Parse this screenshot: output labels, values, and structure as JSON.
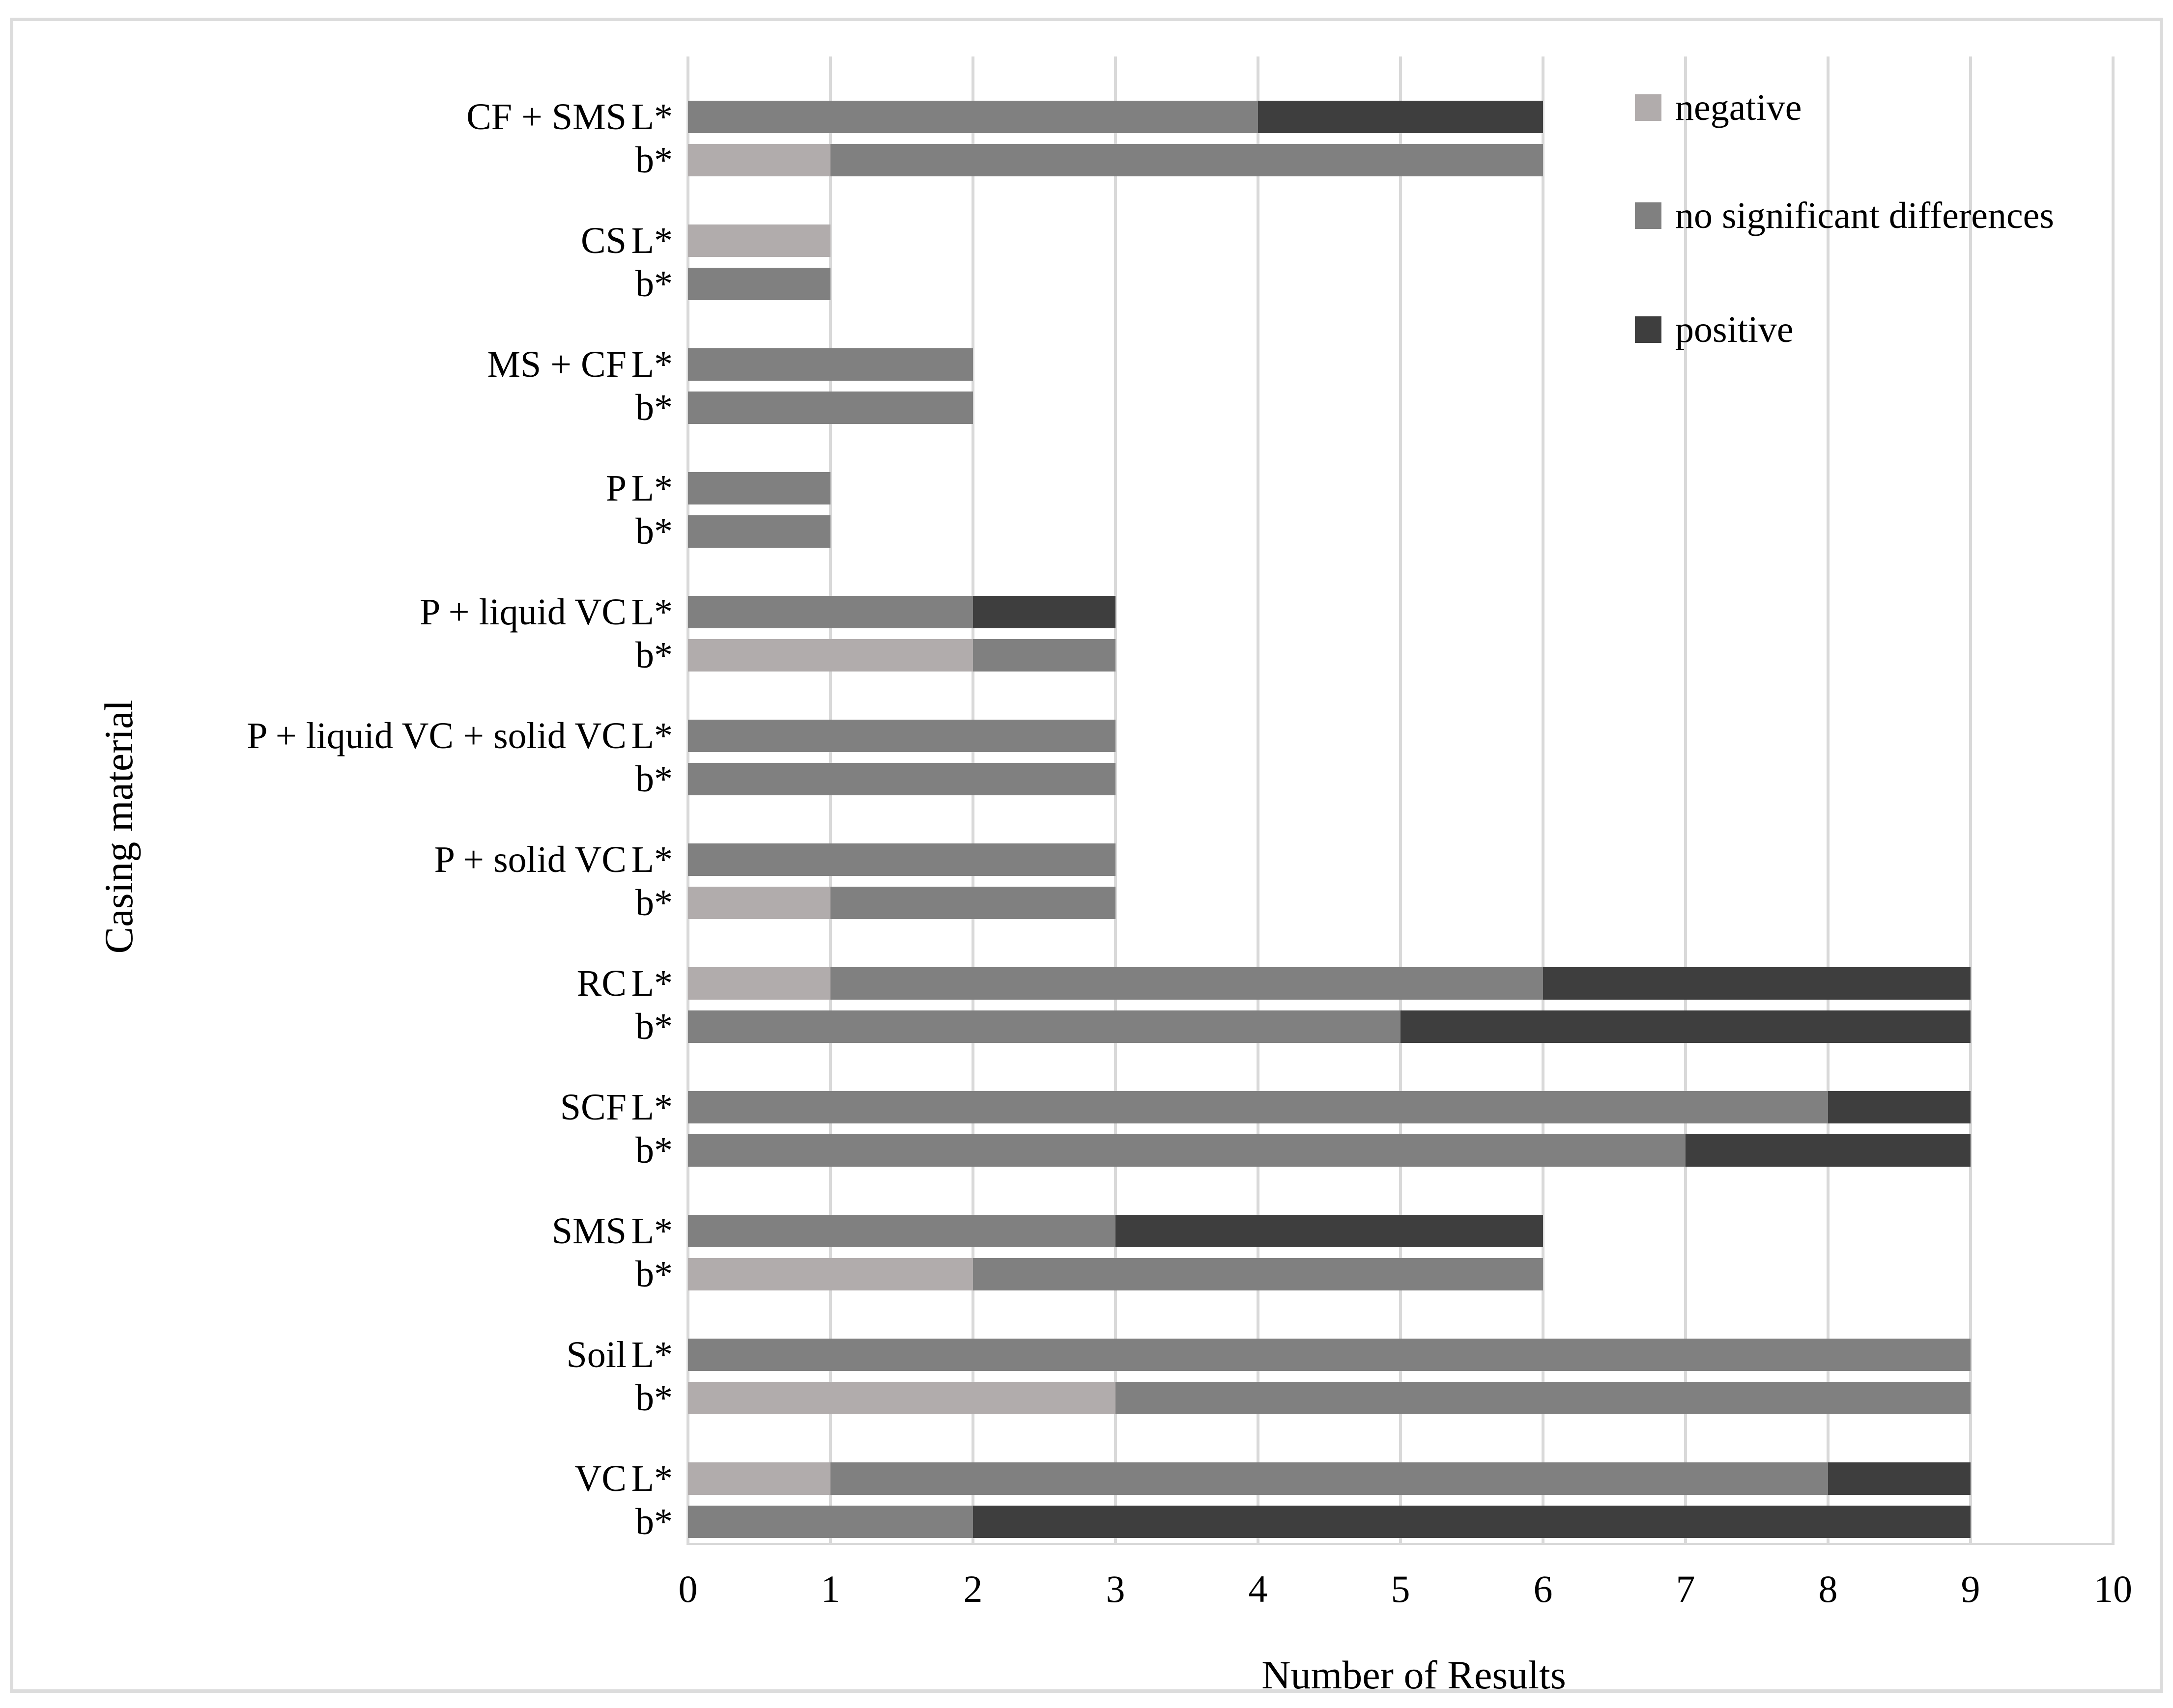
{
  "chart_data": {
    "type": "bar",
    "orientation": "horizontal",
    "stacked": true,
    "title": "",
    "xlabel": "Number of Results",
    "ylabel": "Casing material",
    "xlim": [
      0,
      10
    ],
    "xticks": [
      0,
      1,
      2,
      3,
      4,
      5,
      6,
      7,
      8,
      9,
      10
    ],
    "grid": true,
    "legend_position": "top-right",
    "sub_bar_labels": [
      "L*",
      "b*"
    ],
    "series_order": [
      "negative",
      "no_significant_differences",
      "positive"
    ],
    "legend": [
      {
        "key": "negative",
        "label": "negative",
        "color": "#b1acac"
      },
      {
        "key": "no_significant_differences",
        "label": "no significant differences",
        "color": "#808080"
      },
      {
        "key": "positive",
        "label": "positive",
        "color": "#3e3e3e"
      }
    ],
    "groups": [
      {
        "category": "CF + SMS",
        "bars": [
          {
            "label": "L*",
            "values": {
              "negative": 0,
              "no_significant_differences": 4,
              "positive": 2
            }
          },
          {
            "label": "b*",
            "values": {
              "negative": 1,
              "no_significant_differences": 5,
              "positive": 0
            }
          }
        ]
      },
      {
        "category": "CS",
        "bars": [
          {
            "label": "L*",
            "values": {
              "negative": 1,
              "no_significant_differences": 0,
              "positive": 0
            }
          },
          {
            "label": "b*",
            "values": {
              "negative": 0,
              "no_significant_differences": 1,
              "positive": 0
            }
          }
        ]
      },
      {
        "category": "MS + CF",
        "bars": [
          {
            "label": "L*",
            "values": {
              "negative": 0,
              "no_significant_differences": 2,
              "positive": 0
            }
          },
          {
            "label": "b*",
            "values": {
              "negative": 0,
              "no_significant_differences": 2,
              "positive": 0
            }
          }
        ]
      },
      {
        "category": "P",
        "bars": [
          {
            "label": "L*",
            "values": {
              "negative": 0,
              "no_significant_differences": 1,
              "positive": 0
            }
          },
          {
            "label": "b*",
            "values": {
              "negative": 0,
              "no_significant_differences": 1,
              "positive": 0
            }
          }
        ]
      },
      {
        "category": "P + liquid VC",
        "bars": [
          {
            "label": "L*",
            "values": {
              "negative": 0,
              "no_significant_differences": 2,
              "positive": 1
            }
          },
          {
            "label": "b*",
            "values": {
              "negative": 2,
              "no_significant_differences": 1,
              "positive": 0
            }
          }
        ]
      },
      {
        "category": "P + liquid VC + solid VC",
        "bars": [
          {
            "label": "L*",
            "values": {
              "negative": 0,
              "no_significant_differences": 3,
              "positive": 0
            }
          },
          {
            "label": "b*",
            "values": {
              "negative": 0,
              "no_significant_differences": 3,
              "positive": 0
            }
          }
        ]
      },
      {
        "category": "P + solid VC",
        "bars": [
          {
            "label": "L*",
            "values": {
              "negative": 0,
              "no_significant_differences": 3,
              "positive": 0
            }
          },
          {
            "label": "b*",
            "values": {
              "negative": 1,
              "no_significant_differences": 2,
              "positive": 0
            }
          }
        ]
      },
      {
        "category": "RC",
        "bars": [
          {
            "label": "L*",
            "values": {
              "negative": 1,
              "no_significant_differences": 5,
              "positive": 3
            }
          },
          {
            "label": "b*",
            "values": {
              "negative": 0,
              "no_significant_differences": 5,
              "positive": 4
            }
          }
        ]
      },
      {
        "category": "SCF",
        "bars": [
          {
            "label": "L*",
            "values": {
              "negative": 0,
              "no_significant_differences": 8,
              "positive": 1
            }
          },
          {
            "label": "b*",
            "values": {
              "negative": 0,
              "no_significant_differences": 7,
              "positive": 2
            }
          }
        ]
      },
      {
        "category": "SMS",
        "bars": [
          {
            "label": "L*",
            "values": {
              "negative": 0,
              "no_significant_differences": 3,
              "positive": 3
            }
          },
          {
            "label": "b*",
            "values": {
              "negative": 2,
              "no_significant_differences": 4,
              "positive": 0
            }
          }
        ]
      },
      {
        "category": "Soil",
        "bars": [
          {
            "label": "L*",
            "values": {
              "negative": 0,
              "no_significant_differences": 9,
              "positive": 0
            }
          },
          {
            "label": "b*",
            "values": {
              "negative": 3,
              "no_significant_differences": 6,
              "positive": 0
            }
          }
        ]
      },
      {
        "category": "VC",
        "bars": [
          {
            "label": "L*",
            "values": {
              "negative": 1,
              "no_significant_differences": 7,
              "positive": 1
            }
          },
          {
            "label": "b*",
            "values": {
              "negative": 0,
              "no_significant_differences": 2,
              "positive": 7
            }
          }
        ]
      }
    ],
    "colors": {
      "gridline": "#d9d9d9",
      "axis_line": "#d9d9d9",
      "frame_border": "#dcdcdc",
      "background": "#ffffff",
      "text": "#000000"
    }
  }
}
